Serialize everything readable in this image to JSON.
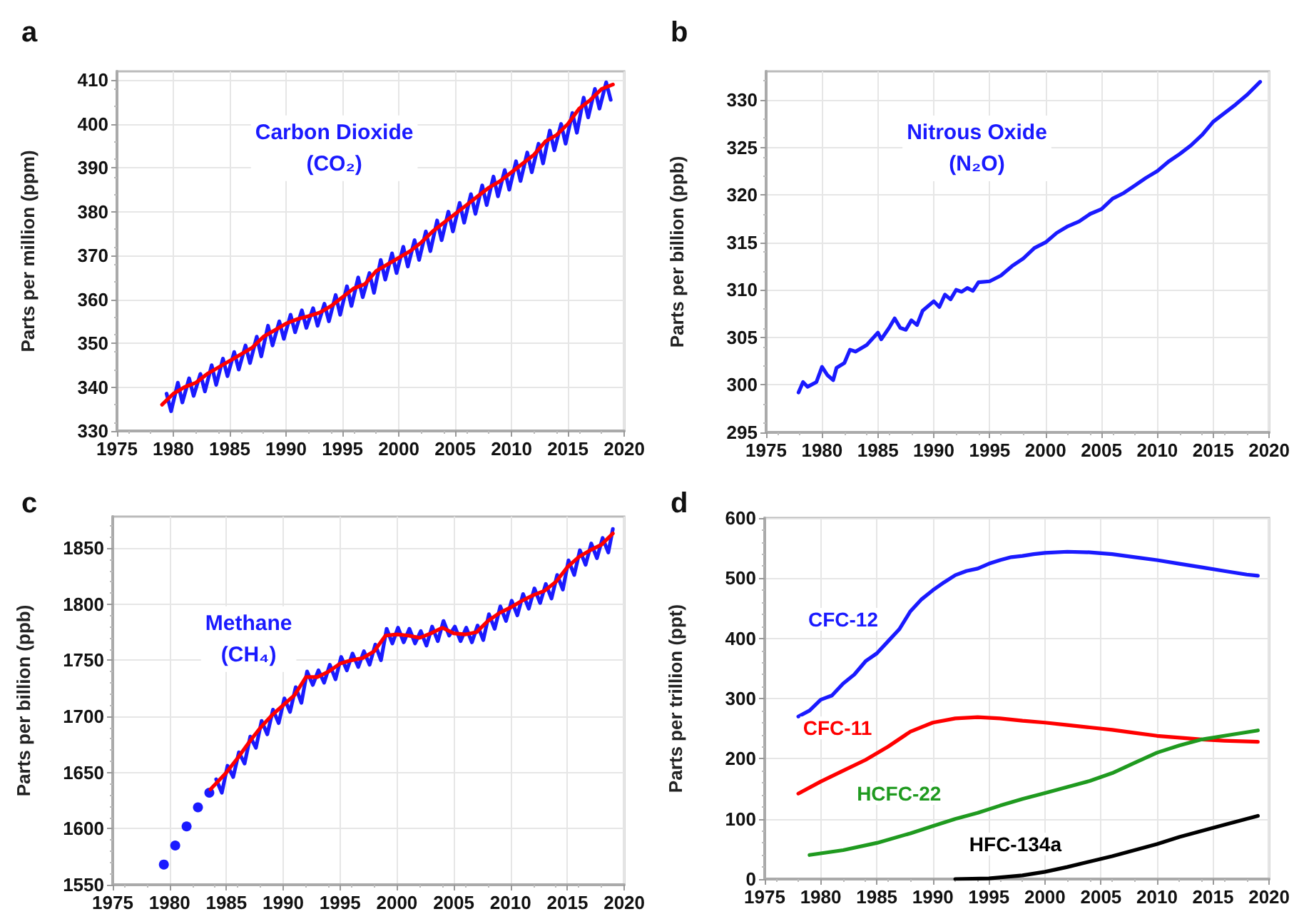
{
  "chart_data": [
    {
      "type": "line",
      "title": "a",
      "ylabel": "Parts per million (ppm)",
      "annotations": [
        "Carbon Dioxide\n(CO₂)"
      ],
      "xlim": [
        1975,
        2020
      ],
      "xticks": [
        1975,
        1980,
        1985,
        1990,
        1995,
        2000,
        2005,
        2010,
        2015,
        2020
      ],
      "ylim": [
        330,
        412
      ],
      "yticks": [
        330,
        340,
        350,
        360,
        370,
        380,
        390,
        400,
        410
      ],
      "grid": true,
      "series": [
        {
          "color": "#1a1aff",
          "x": [
            1979.4,
            1979.8,
            1980.4,
            1980.8,
            1981.4,
            1981.8,
            1982.4,
            1982.8,
            1983.4,
            1983.8,
            1984.4,
            1984.8,
            1985.4,
            1985.8,
            1986.4,
            1986.8,
            1987.4,
            1987.8,
            1988.4,
            1988.8,
            1989.4,
            1989.8,
            1990.4,
            1990.8,
            1991.4,
            1991.8,
            1992.4,
            1992.8,
            1993.4,
            1993.8,
            1994.4,
            1994.8,
            1995.4,
            1995.8,
            1996.4,
            1996.8,
            1997.4,
            1997.8,
            1998.4,
            1998.8,
            1999.4,
            1999.8,
            2000.4,
            2000.8,
            2001.4,
            2001.8,
            2002.4,
            2002.8,
            2003.4,
            2003.8,
            2004.4,
            2004.8,
            2005.4,
            2005.8,
            2006.4,
            2006.8,
            2007.4,
            2007.8,
            2008.4,
            2008.8,
            2009.4,
            2009.8,
            2010.4,
            2010.8,
            2011.4,
            2011.8,
            2012.4,
            2012.8,
            2013.4,
            2013.8,
            2014.4,
            2014.8,
            2015.4,
            2015.8,
            2016.4,
            2016.8,
            2017.4,
            2017.8,
            2018.4,
            2018.8
          ],
          "values": [
            338.5,
            334.5,
            341,
            336.5,
            342,
            338,
            343,
            339,
            345,
            340.5,
            346.5,
            342.5,
            348,
            344,
            349.5,
            345.5,
            351.5,
            347,
            354,
            349.5,
            355,
            351,
            356.5,
            352.5,
            357.5,
            353.5,
            358,
            354,
            359,
            355,
            361,
            356.5,
            363,
            358.5,
            365,
            360.5,
            366,
            361.5,
            369,
            364.5,
            370.5,
            366,
            372,
            367.5,
            373.5,
            369,
            375.5,
            371,
            378,
            373.5,
            380,
            375.5,
            382,
            377.5,
            384,
            379.5,
            386,
            381.5,
            388,
            383.5,
            389.5,
            385,
            391.5,
            387,
            393.5,
            389,
            395.5,
            391,
            398.5,
            394,
            400,
            395.5,
            402.5,
            398,
            406,
            401.5,
            408,
            403.5,
            409.5,
            405.5
          ]
        },
        {
          "color": "#ff0000",
          "x": [
            1979,
            1980,
            1981,
            1982,
            1983,
            1984,
            1985,
            1986,
            1987,
            1988,
            1989,
            1990,
            1991,
            1992,
            1993,
            1994,
            1995,
            1996,
            1997,
            1998,
            1999,
            2000,
            2001,
            2002,
            2003,
            2004,
            2005,
            2006,
            2007,
            2008,
            2009,
            2010,
            2011,
            2012,
            2013,
            2014,
            2015,
            2016,
            2017,
            2018,
            2019
          ],
          "values": [
            336,
            338.5,
            340,
            341,
            343,
            344.5,
            346,
            347.5,
            349,
            351.5,
            353,
            354.5,
            355.5,
            356.2,
            357,
            358.5,
            360.5,
            362.5,
            363.5,
            366.5,
            368,
            369.5,
            371,
            373,
            375.5,
            377.5,
            379.5,
            381.5,
            383.5,
            385.5,
            387,
            389,
            391,
            393,
            396,
            397.5,
            400,
            403.5,
            405.5,
            408,
            409
          ]
        }
      ]
    },
    {
      "type": "line",
      "title": "b",
      "ylabel": "Parts per billion (ppb)",
      "annotations": [
        "Nitrous Oxide\n(N₂O)"
      ],
      "xlim": [
        1975,
        2020
      ],
      "xticks": [
        1975,
        1980,
        1985,
        1990,
        1995,
        2000,
        2005,
        2010,
        2015,
        2020
      ],
      "ylim": [
        295,
        333
      ],
      "yticks": [
        295,
        300,
        305,
        310,
        315,
        320,
        325,
        330
      ],
      "grid": true,
      "series": [
        {
          "color": "#1a1aff",
          "x": [
            1977.9,
            1978.3,
            1978.7,
            1979.5,
            1980,
            1980.5,
            1981,
            1981.3,
            1982,
            1982.5,
            1983,
            1984,
            1985,
            1985.3,
            1986,
            1986.5,
            1987,
            1987.5,
            1988,
            1988.5,
            1989,
            1990,
            1990.5,
            1991,
            1991.5,
            1992,
            1992.5,
            1993,
            1993.5,
            1994,
            1995,
            1996,
            1997,
            1998,
            1999,
            2000,
            2001,
            2002,
            2003,
            2004,
            2005,
            2006,
            2007,
            2008,
            2009,
            2010,
            2011,
            2012,
            2013,
            2014,
            2015,
            2016,
            2017,
            2018,
            2019.2
          ],
          "values": [
            299.2,
            300.3,
            299.8,
            300.3,
            301.9,
            301,
            300.5,
            301.8,
            302.3,
            303.7,
            303.5,
            304.2,
            305.5,
            304.8,
            306,
            307,
            306,
            305.8,
            306.8,
            306.3,
            307.8,
            308.8,
            308.2,
            309.5,
            309,
            310,
            309.8,
            310.2,
            309.9,
            310.8,
            310.9,
            311.5,
            312.5,
            313.3,
            314.4,
            315,
            316,
            316.7,
            317.2,
            318,
            318.5,
            319.6,
            320.2,
            321,
            321.8,
            322.5,
            323.5,
            324.3,
            325.2,
            326.3,
            327.7,
            328.6,
            329.5,
            330.5,
            331.9
          ]
        }
      ]
    },
    {
      "type": "line",
      "title": "c",
      "ylabel": "Parts per billion (ppb)",
      "annotations": [
        "Methane\n(CH₄)"
      ],
      "xlim": [
        1975,
        2020
      ],
      "xticks": [
        1975,
        1980,
        1985,
        1990,
        1995,
        2000,
        2005,
        2010,
        2015,
        2020
      ],
      "ylim": [
        1550,
        1878
      ],
      "yticks": [
        1550,
        1600,
        1650,
        1700,
        1750,
        1800,
        1850
      ],
      "grid": true,
      "series": [
        {
          "type": "scatter",
          "marker": "circle",
          "color": "#1a1aff",
          "x": [
            1979.5,
            1980.5,
            1981.5,
            1982.5,
            1983.5
          ],
          "values": [
            1568,
            1585,
            1602,
            1619,
            1632
          ]
        },
        {
          "color": "#1a1aff",
          "x": [
            1984.1,
            1984.6,
            1985.1,
            1985.6,
            1986.1,
            1986.6,
            1987.1,
            1987.6,
            1988.1,
            1988.6,
            1989.1,
            1989.6,
            1990.1,
            1990.6,
            1991.1,
            1991.6,
            1992.1,
            1992.6,
            1993.1,
            1993.6,
            1994.1,
            1994.6,
            1995.1,
            1995.6,
            1996.1,
            1996.6,
            1997.1,
            1997.6,
            1998.1,
            1998.6,
            1999.1,
            1999.6,
            2000.1,
            2000.6,
            2001.1,
            2001.6,
            2002.1,
            2002.6,
            2003.1,
            2003.6,
            2004.1,
            2004.6,
            2005.1,
            2005.6,
            2006.1,
            2006.6,
            2007.1,
            2007.6,
            2008.1,
            2008.6,
            2009.1,
            2009.6,
            2010.1,
            2010.6,
            2011.1,
            2011.6,
            2012.1,
            2012.6,
            2013.1,
            2013.6,
            2014.1,
            2014.6,
            2015.1,
            2015.6,
            2016.1,
            2016.6,
            2017.1,
            2017.6,
            2018.1,
            2018.6,
            2019
          ],
          "values": [
            1644,
            1632,
            1656,
            1646,
            1668,
            1658,
            1682,
            1672,
            1696,
            1684,
            1706,
            1694,
            1716,
            1704,
            1726,
            1712,
            1740,
            1728,
            1741,
            1730,
            1746,
            1733,
            1753,
            1741,
            1756,
            1744,
            1758,
            1746,
            1764,
            1750,
            1778,
            1765,
            1779,
            1766,
            1778,
            1765,
            1776,
            1763,
            1780,
            1767,
            1785,
            1772,
            1780,
            1767,
            1779,
            1766,
            1781,
            1768,
            1791,
            1778,
            1798,
            1785,
            1803,
            1790,
            1809,
            1796,
            1814,
            1801,
            1818,
            1805,
            1826,
            1813,
            1839,
            1826,
            1848,
            1835,
            1854,
            1841,
            1859,
            1846,
            1867
          ]
        },
        {
          "color": "#ff0000",
          "x": [
            1983.6,
            1985,
            1986,
            1987,
            1988,
            1989,
            1990,
            1991,
            1992,
            1993,
            1994,
            1995,
            1996,
            1997,
            1998,
            1999,
            2000,
            2001,
            2002,
            2003,
            2004,
            2005,
            2006,
            2007,
            2008,
            2009,
            2010,
            2011,
            2012,
            2013,
            2014,
            2015,
            2016,
            2017,
            2018,
            2019
          ],
          "values": [
            1635,
            1650,
            1663,
            1677,
            1690,
            1701,
            1710,
            1719,
            1735,
            1735,
            1740,
            1747,
            1750,
            1752,
            1758,
            1772,
            1773,
            1772,
            1770,
            1774,
            1779,
            1774,
            1773,
            1775,
            1785,
            1792,
            1797,
            1803,
            1808,
            1812,
            1820,
            1833,
            1842,
            1848,
            1853,
            1863
          ]
        }
      ]
    },
    {
      "type": "line",
      "title": "d",
      "ylabel": "Parts per trillion (ppt)",
      "xlim": [
        1975,
        2020
      ],
      "xticks": [
        1975,
        1980,
        1985,
        1990,
        1995,
        2000,
        2005,
        2010,
        2015,
        2020
      ],
      "ylim": [
        0,
        600
      ],
      "yticks": [
        0,
        100,
        200,
        300,
        400,
        500,
        600
      ],
      "grid": true,
      "series": [
        {
          "name": "CFC-12",
          "color": "#1a1aff",
          "x": [
            1978,
            1979,
            1980,
            1981,
            1982,
            1983,
            1984,
            1985,
            1986,
            1987,
            1988,
            1989,
            1990,
            1991,
            1992,
            1993,
            1994,
            1995,
            1996,
            1997,
            1998,
            1999,
            2000,
            2002,
            2004,
            2006,
            2008,
            2010,
            2012,
            2014,
            2016,
            2018,
            2019
          ],
          "values": [
            270,
            280,
            298,
            305,
            325,
            340,
            362,
            375,
            395,
            415,
            445,
            465,
            480,
            493,
            505,
            512,
            516,
            524,
            530,
            535,
            537,
            540,
            542,
            544,
            543,
            540,
            535,
            530,
            524,
            518,
            512,
            506,
            504
          ]
        },
        {
          "name": "CFC-11",
          "color": "#ff0000",
          "x": [
            1978,
            1980,
            1982,
            1984,
            1986,
            1988,
            1990,
            1992,
            1994,
            1996,
            1998,
            2000,
            2002,
            2004,
            2006,
            2008,
            2010,
            2012,
            2014,
            2016,
            2019
          ],
          "values": [
            142,
            162,
            180,
            198,
            220,
            245,
            260,
            267,
            269,
            267,
            263,
            260,
            256,
            252,
            248,
            243,
            238,
            235,
            232,
            230,
            228
          ]
        },
        {
          "name": "HCFC-22",
          "color": "#1f9a1f",
          "x": [
            1979,
            1982,
            1985,
            1988,
            1990,
            1992,
            1994,
            1996,
            1998,
            2000,
            2002,
            2004,
            2006,
            2008,
            2010,
            2012,
            2014,
            2016,
            2019
          ],
          "values": [
            40,
            48,
            60,
            76,
            88,
            100,
            110,
            122,
            133,
            143,
            153,
            163,
            176,
            193,
            210,
            222,
            232,
            238,
            247
          ]
        },
        {
          "name": "HFC-134a",
          "color": "#000000",
          "x": [
            1992,
            1995,
            1998,
            2000,
            2002,
            2004,
            2006,
            2008,
            2010,
            2012,
            2014,
            2016,
            2019
          ],
          "values": [
            0,
            1,
            6,
            12,
            20,
            29,
            38,
            48,
            58,
            70,
            80,
            90,
            105
          ]
        }
      ]
    }
  ]
}
